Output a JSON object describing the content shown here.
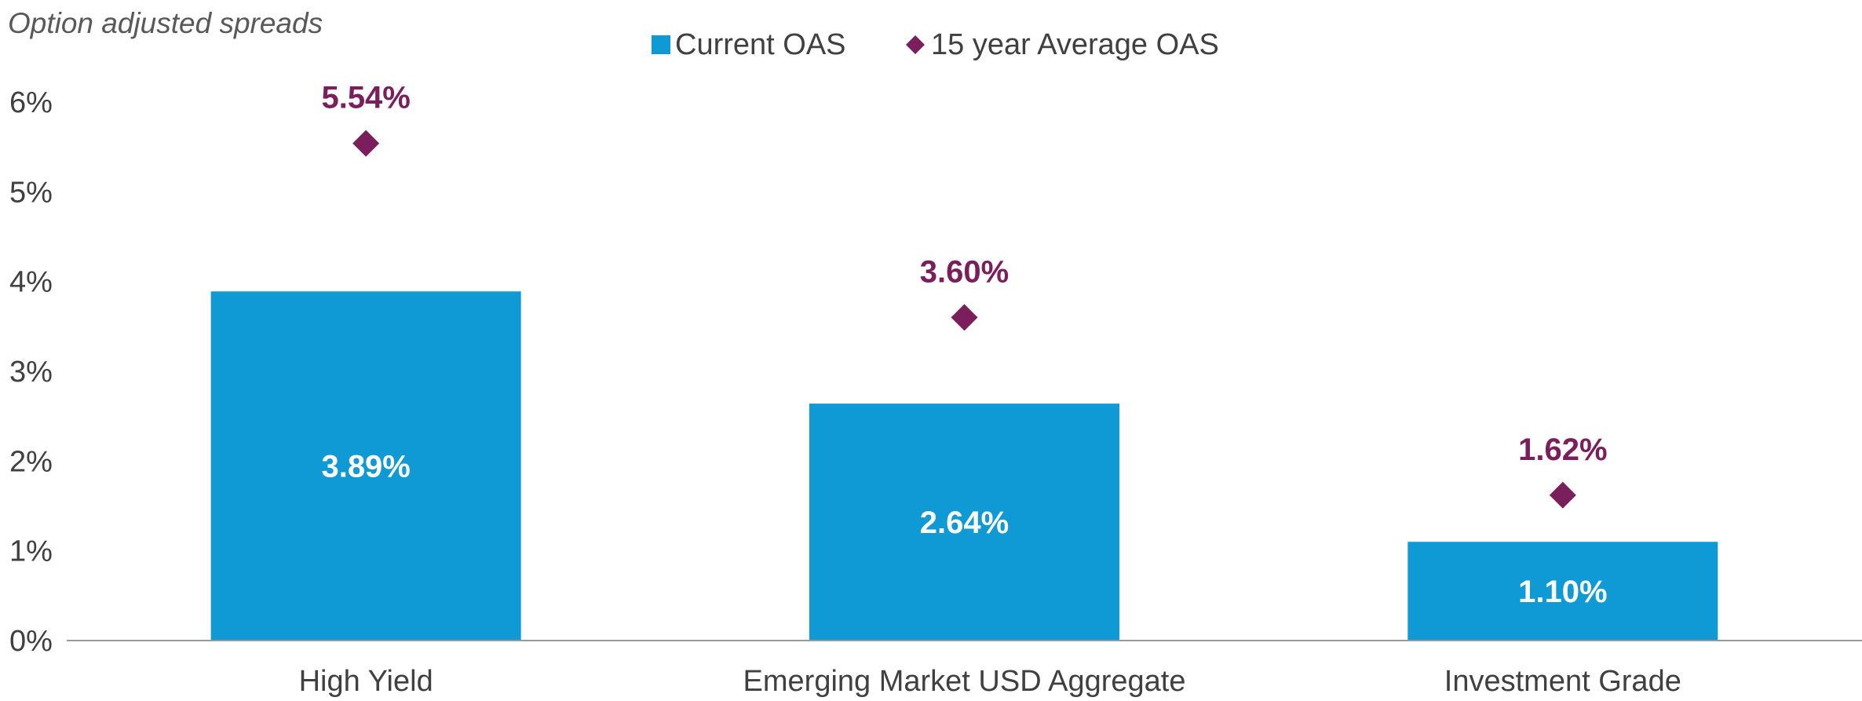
{
  "chart_data": {
    "type": "bar",
    "title": "",
    "ylabel": "Option adjusted spreads",
    "xlabel": "",
    "categories": [
      "High Yield",
      "Emerging Market USD Aggregate",
      "Investment Grade"
    ],
    "ylim": [
      0,
      6
    ],
    "yticks": [
      0,
      1,
      2,
      3,
      4,
      5,
      6
    ],
    "ytick_labels": [
      "0%",
      "1%",
      "2%",
      "3%",
      "4%",
      "5%",
      "6%"
    ],
    "grid": false,
    "legend_position": "top-center",
    "series": [
      {
        "name": "Current OAS",
        "type": "bar",
        "color": "#0f9ad6",
        "values": [
          3.89,
          2.64,
          1.1
        ],
        "labels": [
          "3.89%",
          "2.64%",
          "1.10%"
        ]
      },
      {
        "name": "15 year Average OAS",
        "type": "scatter",
        "marker": "diamond",
        "color": "#7a1f5c",
        "values": [
          5.54,
          3.6,
          1.62
        ],
        "labels": [
          "5.54%",
          "3.60%",
          "1.62%"
        ]
      }
    ]
  }
}
